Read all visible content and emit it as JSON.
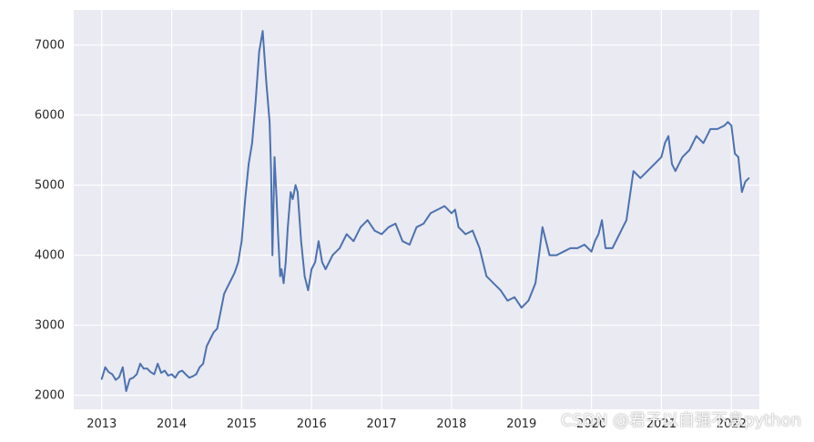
{
  "chart_data": {
    "type": "line",
    "title": "",
    "xlabel": "",
    "ylabel": "",
    "xlim": [
      2012.6,
      2022.4
    ],
    "ylim": [
      1800,
      7500
    ],
    "xticks": [
      "2013",
      "2014",
      "2015",
      "2016",
      "2017",
      "2018",
      "2019",
      "2020",
      "2021",
      "2022"
    ],
    "yticks": [
      2000,
      3000,
      4000,
      5000,
      6000,
      7000
    ],
    "grid": true,
    "colors": {
      "background": "#eaeaf2",
      "grid": "#ffffff",
      "line": "#4c72b0"
    },
    "series": [
      {
        "x": [
          2013.0,
          2013.05,
          2013.1,
          2013.15,
          2013.2,
          2013.25,
          2013.3,
          2013.35,
          2013.4,
          2013.45,
          2013.5,
          2013.55,
          2013.6,
          2013.65,
          2013.7,
          2013.75,
          2013.8,
          2013.85,
          2013.9,
          2013.95,
          2014.0,
          2014.05,
          2014.1,
          2014.15,
          2014.2,
          2014.25,
          2014.3,
          2014.35,
          2014.4,
          2014.45,
          2014.5,
          2014.55,
          2014.6,
          2014.65,
          2014.7,
          2014.75,
          2014.8,
          2014.85,
          2014.9,
          2014.95,
          2015.0,
          2015.05,
          2015.1,
          2015.15,
          2015.2,
          2015.25,
          2015.3,
          2015.35,
          2015.4,
          2015.42,
          2015.44,
          2015.47,
          2015.5,
          2015.52,
          2015.55,
          2015.57,
          2015.6,
          2015.63,
          2015.66,
          2015.7,
          2015.73,
          2015.77,
          2015.8,
          2015.85,
          2015.9,
          2015.95,
          2016.0,
          2016.05,
          2016.1,
          2016.15,
          2016.2,
          2016.3,
          2016.4,
          2016.5,
          2016.6,
          2016.7,
          2016.8,
          2016.9,
          2017.0,
          2017.1,
          2017.2,
          2017.3,
          2017.4,
          2017.5,
          2017.6,
          2017.7,
          2017.8,
          2017.9,
          2018.0,
          2018.05,
          2018.1,
          2018.2,
          2018.3,
          2018.4,
          2018.5,
          2018.6,
          2018.7,
          2018.8,
          2018.9,
          2019.0,
          2019.1,
          2019.2,
          2019.25,
          2019.3,
          2019.4,
          2019.5,
          2019.6,
          2019.7,
          2019.8,
          2019.9,
          2020.0,
          2020.05,
          2020.1,
          2020.15,
          2020.2,
          2020.3,
          2020.4,
          2020.5,
          2020.6,
          2020.7,
          2020.8,
          2020.9,
          2021.0,
          2021.05,
          2021.1,
          2021.15,
          2021.2,
          2021.3,
          2021.4,
          2021.5,
          2021.6,
          2021.7,
          2021.8,
          2021.9,
          2021.95,
          2022.0,
          2022.05,
          2022.1,
          2022.15,
          2022.2,
          2022.25
        ],
        "y": [
          2230,
          2400,
          2330,
          2300,
          2220,
          2260,
          2400,
          2060,
          2230,
          2250,
          2300,
          2450,
          2380,
          2380,
          2330,
          2300,
          2450,
          2320,
          2350,
          2280,
          2300,
          2250,
          2330,
          2350,
          2300,
          2250,
          2270,
          2300,
          2400,
          2450,
          2700,
          2800,
          2900,
          2950,
          3200,
          3450,
          3550,
          3650,
          3750,
          3900,
          4200,
          4800,
          5300,
          5600,
          6200,
          6900,
          7200,
          6500,
          5900,
          5200,
          4000,
          5400,
          4800,
          4300,
          3700,
          3800,
          3600,
          3900,
          4400,
          4900,
          4800,
          5000,
          4900,
          4200,
          3700,
          3500,
          3800,
          3900,
          4200,
          3900,
          3800,
          4000,
          4100,
          4300,
          4200,
          4400,
          4500,
          4350,
          4300,
          4400,
          4450,
          4200,
          4150,
          4400,
          4450,
          4600,
          4650,
          4700,
          4600,
          4650,
          4400,
          4300,
          4350,
          4100,
          3700,
          3600,
          3500,
          3350,
          3400,
          3250,
          3350,
          3600,
          4000,
          4400,
          4000,
          4000,
          4050,
          4100,
          4100,
          4150,
          4050,
          4200,
          4300,
          4500,
          4100,
          4100,
          4300,
          4500,
          5200,
          5100,
          5200,
          5300,
          5400,
          5600,
          5700,
          5300,
          5200,
          5400,
          5500,
          5700,
          5600,
          5800,
          5800,
          5850,
          5900,
          5850,
          5450,
          5400,
          4900,
          5050,
          5100
        ]
      }
    ]
  },
  "watermark": "CSDN @君子以自强不息python"
}
